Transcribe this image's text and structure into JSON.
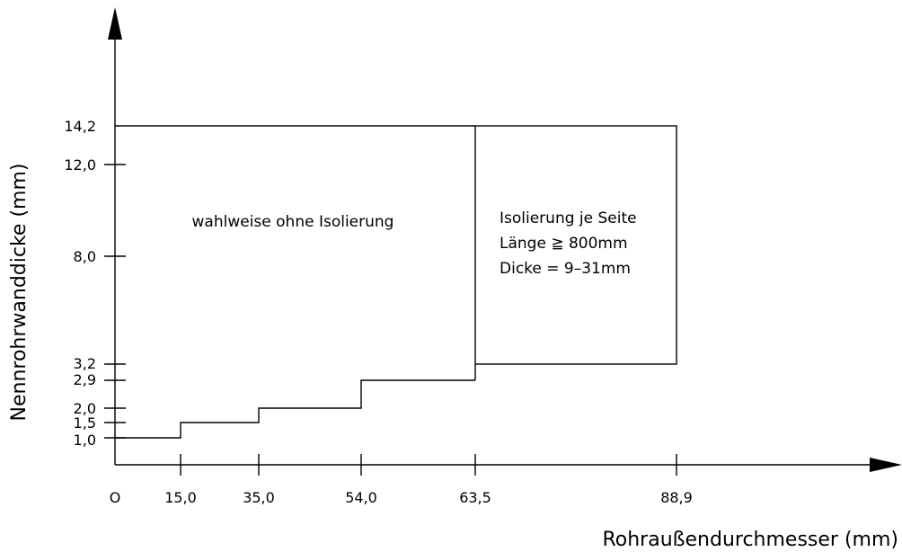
{
  "diagram": {
    "x_axis_label": "Rohraußendurchmesser (mm)",
    "y_axis_label": "Nennrohrwanddicke (mm)",
    "origin_label": "O",
    "x_ticks": [
      "15,0",
      "35,0",
      "54,0",
      "63,5",
      "88,9"
    ],
    "y_ticks": [
      "1,0",
      "1,5",
      "2,0",
      "2,9",
      "3,2",
      "8,0",
      "12,0",
      "14,2"
    ],
    "region_left_text": "wahlweise ohne Isolierung",
    "region_right_lines": [
      "Isolierung je Seite",
      "Länge ≧ 800mm",
      "Dicke = 9–31mm"
    ]
  }
}
